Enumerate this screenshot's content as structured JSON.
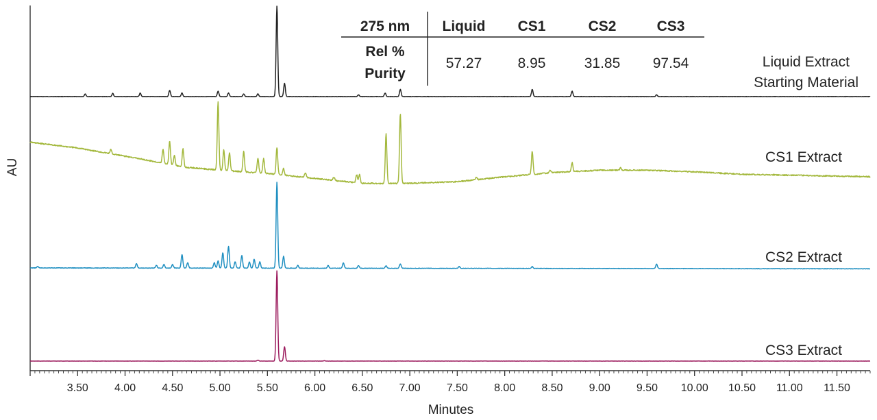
{
  "chart_data": {
    "type": "line",
    "title": "",
    "xlabel": "Minutes",
    "ylabel": "AU",
    "xlim": [
      3.0,
      11.85
    ],
    "x_ticks": [
      "3.50",
      "4.00",
      "4.50",
      "5.00",
      "5.50",
      "6.00",
      "6.50",
      "7.00",
      "7.50",
      "8.00",
      "8.50",
      "9.00",
      "9.50",
      "10.00",
      "10.50",
      "11.00",
      "11.50"
    ],
    "series": [
      {
        "name": "Liquid Extract Starting Material",
        "label_lines": [
          "Liquid Extract",
          "Starting Material"
        ],
        "color": "#222222",
        "baseline": [
          [
            3.0,
            0.0
          ],
          [
            11.85,
            0.0
          ]
        ],
        "peaks": [
          [
            3.58,
            0.03
          ],
          [
            3.87,
            0.035
          ],
          [
            4.16,
            0.04
          ],
          [
            4.47,
            0.07
          ],
          [
            4.6,
            0.04
          ],
          [
            4.98,
            0.06
          ],
          [
            5.09,
            0.04
          ],
          [
            5.25,
            0.03
          ],
          [
            5.4,
            0.03
          ],
          [
            5.6,
            1.0
          ],
          [
            5.68,
            0.15
          ],
          [
            6.46,
            0.02
          ],
          [
            6.74,
            0.04
          ],
          [
            6.9,
            0.08
          ],
          [
            8.29,
            0.08
          ],
          [
            8.71,
            0.06
          ],
          [
            9.6,
            0.02
          ]
        ]
      },
      {
        "name": "CS1 Extract",
        "label_lines": [
          "CS1 Extract"
        ],
        "color": "#a3b83c",
        "baseline": [
          [
            3.0,
            0.42
          ],
          [
            3.5,
            0.35
          ],
          [
            4.15,
            0.22
          ],
          [
            4.6,
            0.12
          ],
          [
            5.0,
            0.08
          ],
          [
            5.5,
            0.04
          ],
          [
            6.0,
            -0.02
          ],
          [
            6.5,
            -0.08
          ],
          [
            7.0,
            -0.08
          ],
          [
            7.5,
            -0.06
          ],
          [
            8.0,
            0.0
          ],
          [
            8.5,
            0.05
          ],
          [
            9.0,
            0.08
          ],
          [
            9.5,
            0.08
          ],
          [
            10.0,
            0.06
          ],
          [
            10.5,
            0.03
          ],
          [
            11.0,
            0.02
          ],
          [
            11.85,
            0.0
          ]
        ],
        "peaks": [
          [
            3.85,
            0.05
          ],
          [
            4.4,
            0.17
          ],
          [
            4.47,
            0.28
          ],
          [
            4.52,
            0.12
          ],
          [
            4.61,
            0.22
          ],
          [
            4.98,
            0.83
          ],
          [
            5.04,
            0.25
          ],
          [
            5.1,
            0.22
          ],
          [
            5.25,
            0.25
          ],
          [
            5.4,
            0.18
          ],
          [
            5.46,
            0.18
          ],
          [
            5.6,
            0.33
          ],
          [
            5.67,
            0.08
          ],
          [
            5.9,
            0.06
          ],
          [
            6.2,
            0.04
          ],
          [
            6.44,
            0.1
          ],
          [
            6.47,
            0.1
          ],
          [
            6.75,
            0.6
          ],
          [
            6.9,
            0.85
          ],
          [
            7.7,
            0.03
          ],
          [
            8.29,
            0.28
          ],
          [
            8.48,
            0.03
          ],
          [
            8.71,
            0.11
          ],
          [
            9.22,
            0.03
          ]
        ]
      },
      {
        "name": "CS2 Extract",
        "label_lines": [
          "CS2 Extract"
        ],
        "color": "#1f8fc1",
        "baseline": [
          [
            3.0,
            0.0
          ],
          [
            11.85,
            -0.01
          ]
        ],
        "peaks": [
          [
            3.08,
            0.015
          ],
          [
            4.12,
            0.05
          ],
          [
            4.33,
            0.03
          ],
          [
            4.41,
            0.04
          ],
          [
            4.5,
            0.04
          ],
          [
            4.6,
            0.15
          ],
          [
            4.66,
            0.06
          ],
          [
            4.94,
            0.06
          ],
          [
            4.98,
            0.08
          ],
          [
            5.03,
            0.17
          ],
          [
            5.09,
            0.24
          ],
          [
            5.16,
            0.07
          ],
          [
            5.23,
            0.14
          ],
          [
            5.31,
            0.07
          ],
          [
            5.36,
            0.1
          ],
          [
            5.42,
            0.07
          ],
          [
            5.6,
            0.95
          ],
          [
            5.67,
            0.13
          ],
          [
            5.82,
            0.03
          ],
          [
            6.14,
            0.03
          ],
          [
            6.3,
            0.06
          ],
          [
            6.46,
            0.03
          ],
          [
            6.75,
            0.03
          ],
          [
            6.9,
            0.05
          ],
          [
            7.52,
            0.02
          ],
          [
            8.29,
            0.02
          ],
          [
            9.6,
            0.05
          ]
        ]
      },
      {
        "name": "CS3 Extract",
        "label_lines": [
          "CS3 Extract"
        ],
        "color": "#9c1c5e",
        "baseline": [
          [
            3.0,
            0.0
          ],
          [
            11.85,
            0.0
          ]
        ],
        "peaks": [
          [
            5.4,
            0.01
          ],
          [
            5.6,
            1.0
          ],
          [
            5.68,
            0.16
          ],
          [
            6.1,
            0.005
          ]
        ]
      }
    ],
    "table": {
      "header": [
        "275 nm",
        "Liquid",
        "CS1",
        "CS2",
        "CS3"
      ],
      "row_label_lines": [
        "Rel %",
        "Purity"
      ],
      "values": [
        "57.27",
        "8.95",
        "31.85",
        "97.54"
      ]
    }
  }
}
